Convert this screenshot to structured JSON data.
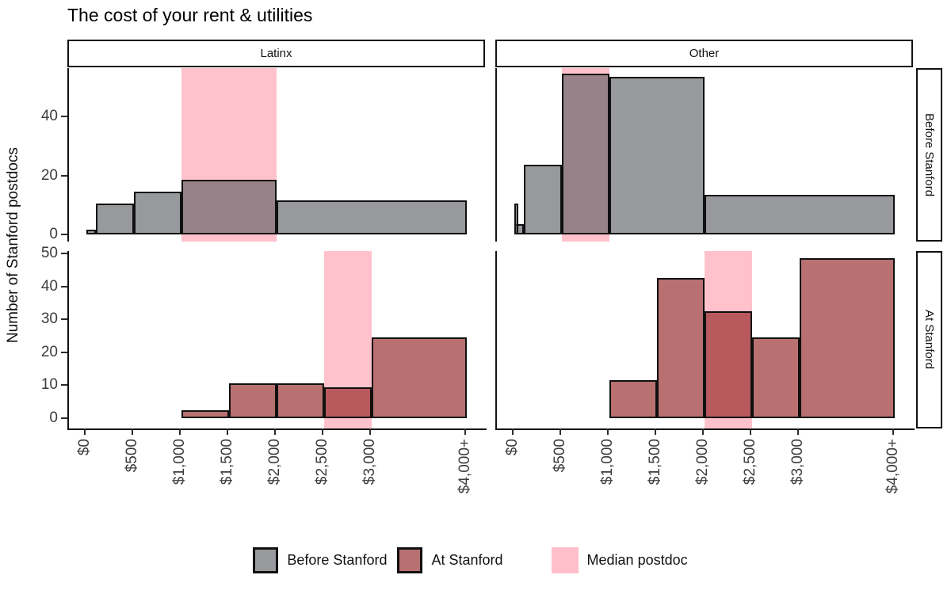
{
  "chart_data": {
    "type": "bar",
    "variant": "faceted-histogram",
    "title": "The cost of your rent & utilities",
    "ylabel": "Number of Stanford postdocs",
    "col_facets": [
      "Latinx",
      "Other"
    ],
    "row_facets": [
      "Before Stanford",
      "At Stanford"
    ],
    "x_axis": {
      "domain": [
        0,
        4000
      ],
      "tick_values": [
        0,
        500,
        1000,
        1500,
        2000,
        2500,
        3000,
        4000
      ],
      "tick_labels": [
        "$0",
        "$500",
        "$1,000",
        "$1,500",
        "$2,000",
        "$2,500",
        "$3,000",
        "$4,000+"
      ]
    },
    "y_axis": {
      "rows": [
        {
          "facet": "Before Stanford",
          "ticks": [
            0,
            20,
            40
          ],
          "max": 56
        },
        {
          "facet": "At Stanford",
          "ticks": [
            0,
            10,
            20,
            30,
            40,
            50
          ],
          "max": 50
        }
      ]
    },
    "panels": [
      {
        "col": "Latinx",
        "row": "Before Stanford",
        "series": "Before Stanford",
        "median_band": {
          "x0": 1000,
          "x1": 2000
        },
        "bins": [
          {
            "x0": 0,
            "x1": 100,
            "count": 1
          },
          {
            "x0": 100,
            "x1": 500,
            "count": 10
          },
          {
            "x0": 500,
            "x1": 1000,
            "count": 14
          },
          {
            "x0": 1000,
            "x1": 2000,
            "count": 18
          },
          {
            "x0": 2000,
            "x1": 4000,
            "count": 11
          }
        ]
      },
      {
        "col": "Other",
        "row": "Before Stanford",
        "series": "Before Stanford",
        "median_band": {
          "x0": 500,
          "x1": 1000
        },
        "bins": [
          {
            "x0": 0,
            "x1": 100,
            "count": 3
          },
          {
            "x0": 0,
            "x1": 35,
            "count": 10
          },
          {
            "x0": 100,
            "x1": 500,
            "count": 23
          },
          {
            "x0": 500,
            "x1": 1000,
            "count": 54
          },
          {
            "x0": 1000,
            "x1": 2000,
            "count": 53
          },
          {
            "x0": 2000,
            "x1": 4000,
            "count": 13
          }
        ]
      },
      {
        "col": "Latinx",
        "row": "At Stanford",
        "series": "At Stanford",
        "median_band": {
          "x0": 2500,
          "x1": 3000
        },
        "bins": [
          {
            "x0": 1000,
            "x1": 1500,
            "count": 2
          },
          {
            "x0": 1500,
            "x1": 2000,
            "count": 10
          },
          {
            "x0": 2000,
            "x1": 2500,
            "count": 10
          },
          {
            "x0": 2500,
            "x1": 3000,
            "count": 9
          },
          {
            "x0": 3000,
            "x1": 4000,
            "count": 24
          }
        ]
      },
      {
        "col": "Other",
        "row": "At Stanford",
        "series": "At Stanford",
        "median_band": {
          "x0": 2000,
          "x1": 2500
        },
        "bins": [
          {
            "x0": 1000,
            "x1": 1500,
            "count": 11
          },
          {
            "x0": 1500,
            "x1": 2000,
            "count": 42
          },
          {
            "x0": 2000,
            "x1": 2500,
            "count": 32
          },
          {
            "x0": 2500,
            "x1": 3000,
            "count": 24
          },
          {
            "x0": 3000,
            "x1": 4000,
            "count": 48
          }
        ]
      }
    ],
    "legend": [
      {
        "label": "Before Stanford",
        "swatch": "gray-bar"
      },
      {
        "label": "At Stanford",
        "swatch": "red-bar"
      },
      {
        "label": "Median postdoc",
        "swatch": "pink-band"
      }
    ],
    "colors": {
      "before_stanford_fill": "rgba(87,90,95,0.62)",
      "at_stanford_fill": "rgba(140,25,25,0.62)",
      "median_band": "#FFC2CC",
      "bar_border": "#101010",
      "gray_over_white": "#97999C",
      "gray_under_band": "#988088",
      "red_over_white": "#B87171",
      "red_under_band": "#BB5A5F"
    }
  }
}
